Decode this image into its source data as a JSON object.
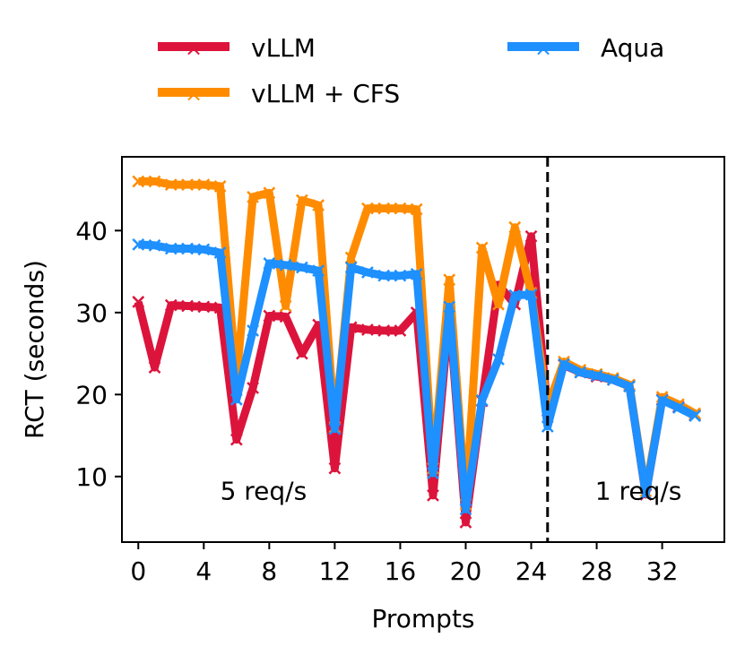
{
  "chart_data": {
    "type": "line",
    "title": "",
    "xlabel": "Prompts",
    "ylabel": "RCT (seconds)",
    "xlim": [
      -1.0,
      35.8
    ],
    "ylim": [
      2.0,
      49.0
    ],
    "xticks": [
      0,
      4,
      8,
      12,
      16,
      20,
      24,
      28,
      32
    ],
    "yticks": [
      10,
      20,
      30,
      40
    ],
    "grid": false,
    "legend_position": "top",
    "annotations": [
      {
        "text": "5 req/s",
        "x": 5.0,
        "y": 7.2
      },
      {
        "text": "1 req/s",
        "x": 27.9,
        "y": 7.2
      }
    ],
    "vlines": [
      {
        "x": 25,
        "style": "dashed",
        "color": "#000000"
      }
    ],
    "x": [
      0,
      1,
      2,
      3,
      4,
      5,
      6,
      7,
      8,
      9,
      10,
      11,
      12,
      13,
      14,
      15,
      16,
      17,
      18,
      19,
      20,
      21,
      22,
      23,
      24,
      25,
      26,
      27,
      28,
      29,
      30,
      31,
      32,
      33,
      34
    ],
    "series": [
      {
        "name": "vLLM",
        "color": "#dc143c",
        "values": [
          31.3,
          23.3,
          30.9,
          30.8,
          30.7,
          30.6,
          14.5,
          20.8,
          29.6,
          29.5,
          25.0,
          28.5,
          11.0,
          28.2,
          27.9,
          27.8,
          27.8,
          30.0,
          7.7,
          30.1,
          4.4,
          19.2,
          33.4,
          31.0,
          39.3,
          18.0,
          23.6,
          22.7,
          22.2,
          21.8,
          21.0,
          7.8,
          19.4,
          18.5,
          17.5
        ]
      },
      {
        "name": "vLLM + CFS",
        "color": "#ff8c00",
        "values": [
          46.0,
          46.0,
          45.6,
          45.6,
          45.6,
          45.4,
          21.8,
          44.1,
          44.6,
          30.8,
          43.7,
          43.1,
          16.0,
          36.7,
          42.7,
          42.7,
          42.7,
          42.6,
          11.0,
          34.0,
          6.6,
          37.9,
          31.0,
          40.4,
          32.4,
          18.5,
          24.0,
          23.0,
          22.5,
          22.0,
          21.2,
          8.2,
          19.7,
          18.8,
          17.7
        ]
      },
      {
        "name": "Aqua",
        "color": "#1e90ff",
        "values": [
          38.3,
          38.2,
          37.8,
          37.8,
          37.7,
          37.3,
          19.4,
          27.8,
          36.0,
          35.8,
          35.5,
          35.1,
          15.8,
          35.5,
          34.9,
          34.5,
          34.5,
          34.7,
          10.4,
          30.7,
          6.0,
          19.3,
          24.3,
          32.1,
          32.2,
          16.1,
          23.7,
          22.7,
          22.3,
          21.8,
          21.0,
          7.9,
          19.3,
          18.4,
          17.4
        ]
      }
    ]
  }
}
